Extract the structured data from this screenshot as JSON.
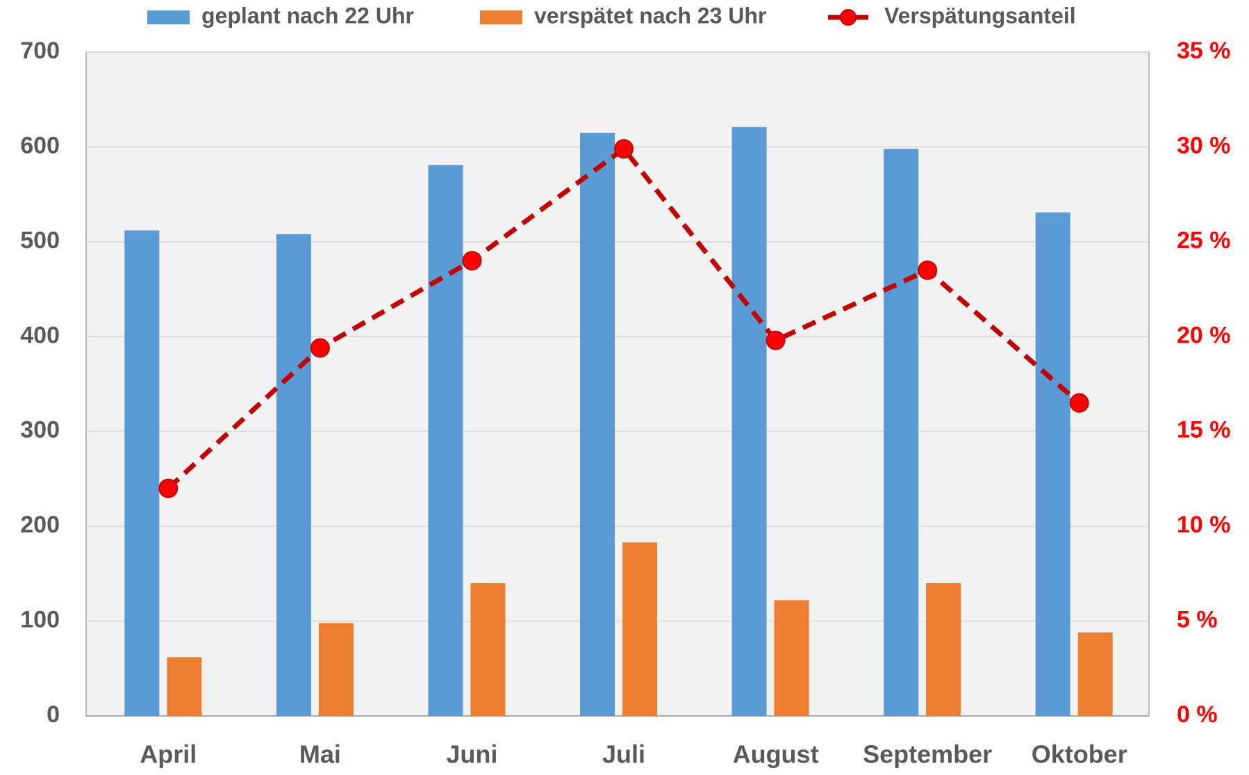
{
  "chart_data": {
    "type": "bar_line",
    "categories": [
      "April",
      "Mai",
      "Juni",
      "Juli",
      "August",
      "September",
      "Oktober"
    ],
    "series": [
      {
        "name": "geplant nach 22 Uhr",
        "color": "#5b9bd5",
        "type": "bar",
        "values": [
          512,
          508,
          581,
          615,
          621,
          598,
          531
        ]
      },
      {
        "name": "verspätet nach 23 Uhr",
        "color": "#ed7d31",
        "type": "bar",
        "values": [
          62,
          98,
          140,
          183,
          122,
          140,
          88
        ]
      },
      {
        "name": "Verspätungsanteil",
        "color": "#c00000",
        "marker_color": "#ff0000",
        "type": "line",
        "axis": "y2",
        "values": [
          12.0,
          19.4,
          24.0,
          29.9,
          19.8,
          23.5,
          16.5
        ]
      }
    ],
    "ylim": [
      0,
      700
    ],
    "yticks": [
      0,
      100,
      200,
      300,
      400,
      500,
      600,
      700
    ],
    "y2lim": [
      0,
      35
    ],
    "y2ticks": [
      {
        "value": 0,
        "label": "0 %"
      },
      {
        "value": 5,
        "label": "5 %"
      },
      {
        "value": 10,
        "label": "10 %"
      },
      {
        "value": 15,
        "label": "15 %"
      },
      {
        "value": 20,
        "label": "20 %"
      },
      {
        "value": 25,
        "label": "25 %"
      },
      {
        "value": 30,
        "label": "30 %"
      },
      {
        "value": 35,
        "label": "35 %"
      }
    ],
    "grid": true,
    "legend": "top"
  }
}
